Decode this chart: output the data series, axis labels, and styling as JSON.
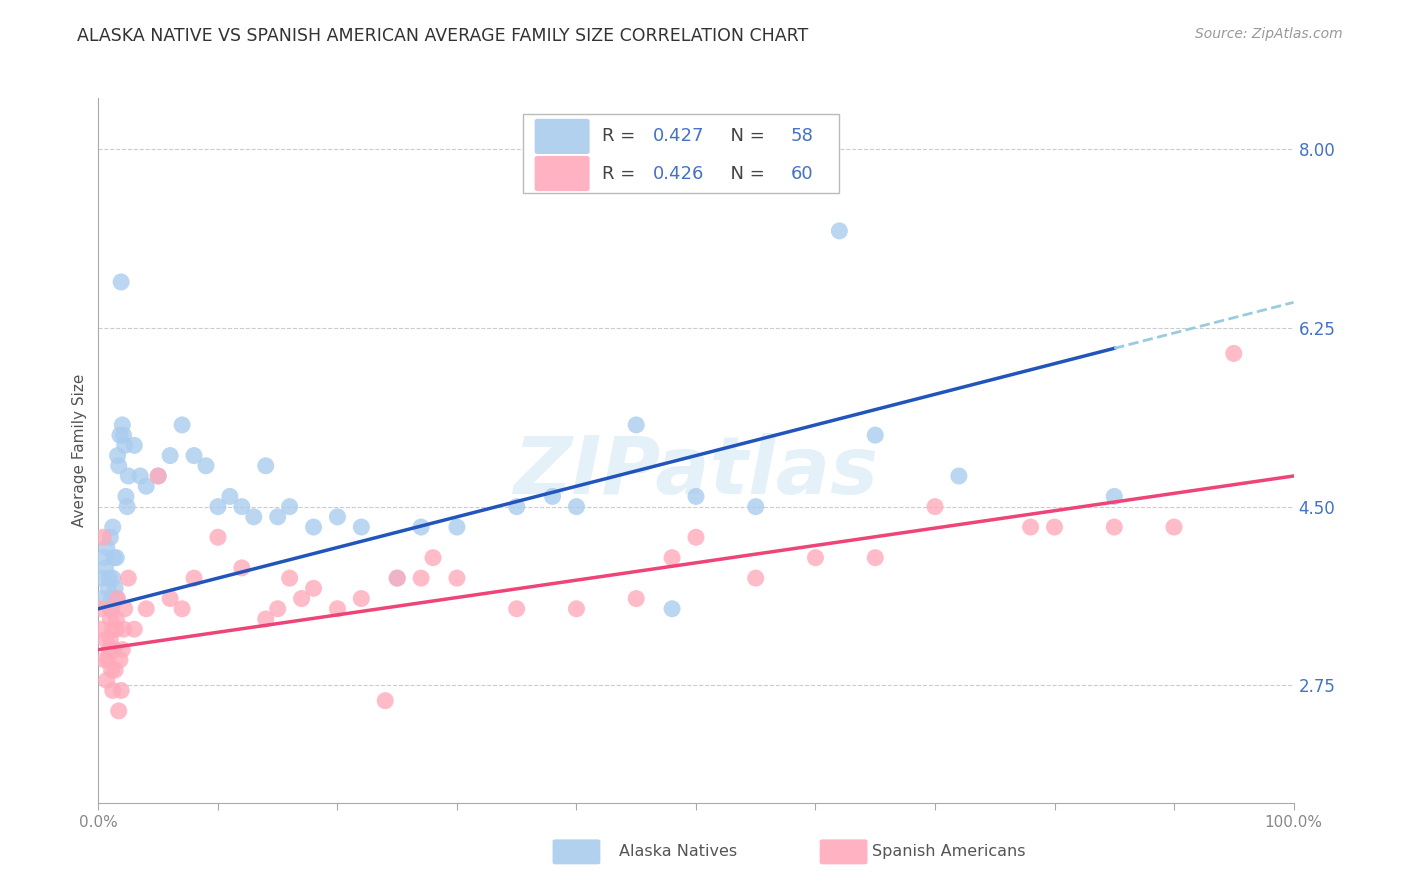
{
  "title": "ALASKA NATIVE VS SPANISH AMERICAN AVERAGE FAMILY SIZE CORRELATION CHART",
  "source": "Source: ZipAtlas.com",
  "ylabel": "Average Family Size",
  "xlim": [
    0.0,
    100.0
  ],
  "ylim": [
    1.6,
    8.5
  ],
  "yticks": [
    2.75,
    4.5,
    6.25,
    8.0
  ],
  "title_fontsize": 12.5,
  "ylabel_fontsize": 11,
  "axis_label_color": "#4472c4",
  "background_color": "#ffffff",
  "grid_color": "#cccccc",
  "watermark": "ZIPatlas",
  "blue_color": "#aaccee",
  "pink_color": "#ffaabb",
  "blue_line_color": "#2255bb",
  "pink_line_color": "#ee4477",
  "blue_dash_color": "#99ccdd",
  "alaska_x": [
    0.3,
    0.4,
    0.5,
    0.6,
    0.7,
    0.8,
    0.9,
    1.0,
    1.0,
    1.1,
    1.2,
    1.2,
    1.3,
    1.4,
    1.5,
    1.5,
    1.6,
    1.7,
    1.8,
    1.9,
    2.0,
    2.1,
    2.2,
    2.3,
    2.4,
    2.5,
    3.0,
    3.5,
    4.0,
    5.0,
    6.0,
    7.0,
    8.0,
    9.0,
    10.0,
    11.0,
    12.0,
    13.0,
    14.0,
    15.0,
    16.0,
    18.0,
    20.0,
    22.0,
    25.0,
    27.0,
    30.0,
    35.0,
    38.0,
    40.0,
    45.0,
    48.0,
    50.0,
    55.0,
    62.0,
    65.0,
    72.0,
    85.0
  ],
  "alaska_y": [
    3.8,
    3.6,
    4.0,
    3.9,
    4.1,
    3.7,
    3.8,
    4.2,
    3.5,
    3.6,
    4.3,
    3.8,
    4.0,
    3.7,
    4.0,
    3.6,
    5.0,
    4.9,
    5.2,
    6.7,
    5.3,
    5.2,
    5.1,
    4.6,
    4.5,
    4.8,
    5.1,
    4.8,
    4.7,
    4.8,
    5.0,
    5.3,
    5.0,
    4.9,
    4.5,
    4.6,
    4.5,
    4.4,
    4.9,
    4.4,
    4.5,
    4.3,
    4.4,
    4.3,
    3.8,
    4.3,
    4.3,
    4.5,
    4.6,
    4.5,
    5.3,
    3.5,
    4.6,
    4.5,
    7.2,
    5.2,
    4.8,
    4.6
  ],
  "spanish_x": [
    0.2,
    0.3,
    0.4,
    0.5,
    0.6,
    0.7,
    0.8,
    0.9,
    1.0,
    1.0,
    1.1,
    1.1,
    1.2,
    1.2,
    1.3,
    1.4,
    1.5,
    1.5,
    1.6,
    1.7,
    1.8,
    1.9,
    2.0,
    2.1,
    2.2,
    2.5,
    3.0,
    4.0,
    5.0,
    6.0,
    7.0,
    8.0,
    10.0,
    12.0,
    14.0,
    15.0,
    16.0,
    17.0,
    18.0,
    20.0,
    22.0,
    24.0,
    25.0,
    27.0,
    28.0,
    30.0,
    35.0,
    40.0,
    45.0,
    48.0,
    50.0,
    55.0,
    60.0,
    65.0,
    70.0,
    78.0,
    80.0,
    85.0,
    90.0,
    95.0
  ],
  "spanish_y": [
    3.5,
    3.3,
    4.2,
    3.0,
    3.2,
    2.8,
    3.0,
    3.1,
    3.4,
    3.2,
    2.9,
    3.5,
    3.3,
    2.7,
    3.1,
    2.9,
    3.4,
    3.3,
    3.6,
    2.5,
    3.0,
    2.7,
    3.1,
    3.3,
    3.5,
    3.8,
    3.3,
    3.5,
    4.8,
    3.6,
    3.5,
    3.8,
    4.2,
    3.9,
    3.4,
    3.5,
    3.8,
    3.6,
    3.7,
    3.5,
    3.6,
    2.6,
    3.8,
    3.8,
    4.0,
    3.8,
    3.5,
    3.5,
    3.6,
    4.0,
    4.2,
    3.8,
    4.0,
    4.0,
    4.5,
    4.3,
    4.3,
    4.3,
    4.3,
    6.0
  ]
}
